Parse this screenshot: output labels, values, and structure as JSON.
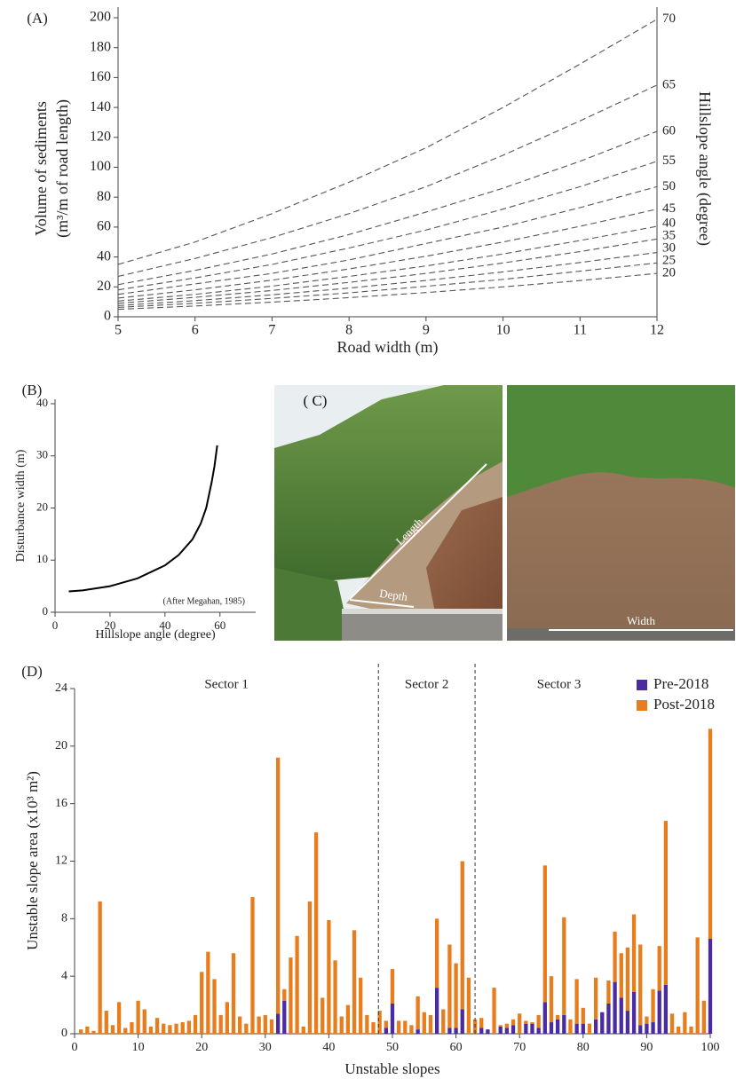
{
  "chart_data": [
    {
      "type": "line",
      "panel_label": "(A)",
      "x_label": "Road width (m)",
      "y_label": [
        "Volume of sediments",
        "(m³/m of road length)"
      ],
      "y2_label": "Hillslope angle (degree)",
      "x": [
        5,
        6,
        7,
        8,
        9,
        10,
        11,
        12
      ],
      "xlim": [
        5,
        12
      ],
      "xticks": [
        5,
        6,
        7,
        8,
        9,
        10,
        11,
        12
      ],
      "ylim": [
        0,
        200
      ],
      "yticks": [
        0,
        20,
        40,
        60,
        80,
        100,
        120,
        140,
        160,
        180,
        200
      ],
      "line_style": "dashed",
      "color": "#555555",
      "series": [
        {
          "name": "20",
          "values": [
            5,
            7.2,
            9.8,
            12.8,
            16.2,
            20,
            24.2,
            29
          ]
        },
        {
          "name": "25",
          "values": [
            6.3,
            9,
            12.3,
            16,
            20.4,
            25,
            30.5,
            36
          ]
        },
        {
          "name": "30",
          "values": [
            7.5,
            10.8,
            14.7,
            19.2,
            24.3,
            30,
            36.3,
            43
          ]
        },
        {
          "name": "35",
          "values": [
            9,
            13,
            17.6,
            23,
            29,
            36,
            43.6,
            52
          ]
        },
        {
          "name": "40",
          "values": [
            10.5,
            15,
            20.5,
            27,
            34,
            42,
            51,
            60.5
          ]
        },
        {
          "name": "45",
          "values": [
            12.5,
            18,
            24.5,
            32,
            40.5,
            50,
            60.5,
            72
          ]
        },
        {
          "name": "50",
          "values": [
            15,
            22,
            29,
            38,
            49,
            60,
            73,
            87
          ]
        },
        {
          "name": "55",
          "values": [
            18,
            26,
            35,
            46,
            58,
            72,
            87,
            104
          ]
        },
        {
          "name": "60",
          "values": [
            21.5,
            31,
            42,
            55,
            70,
            86,
            104,
            124
          ]
        },
        {
          "name": "65",
          "values": [
            27,
            39,
            53,
            69,
            87,
            108,
            131,
            155
          ]
        },
        {
          "name": "70",
          "values": [
            35,
            50,
            69,
            90,
            113,
            140,
            169,
            199
          ]
        }
      ]
    },
    {
      "type": "line",
      "panel_label": "(B)",
      "x_label": "Hillslope angle (degree)",
      "y_label": [
        "Disturbance width (m)"
      ],
      "annotation": "(After Megahan, 1985)",
      "x": [
        5,
        10,
        20,
        30,
        40,
        45,
        50,
        53,
        55,
        57,
        58,
        59
      ],
      "xlim": [
        0,
        73
      ],
      "xticks": [
        0,
        20,
        40,
        60
      ],
      "ylim": [
        0,
        40
      ],
      "yticks": [
        0,
        10,
        20,
        30,
        40
      ],
      "line_style": "solid",
      "color": "#000000",
      "series": [
        {
          "values": [
            4,
            4.2,
            5,
            6.5,
            9,
            11,
            14,
            17,
            20,
            25,
            28,
            32
          ]
        }
      ]
    },
    {
      "type": "stacked_bar",
      "panel_label": "(D)",
      "x_label": "Unstable slopes",
      "y_label": [
        "Unstable slope area (x10³ m²)"
      ],
      "legend": "upper right",
      "x": [
        1,
        2,
        3,
        4,
        5,
        6,
        7,
        8,
        9,
        10,
        11,
        12,
        13,
        14,
        15,
        16,
        17,
        18,
        19,
        20,
        21,
        22,
        23,
        24,
        25,
        26,
        27,
        28,
        29,
        30,
        31,
        32,
        33,
        34,
        35,
        36,
        37,
        38,
        39,
        40,
        41,
        42,
        43,
        44,
        45,
        46,
        47,
        48,
        49,
        50,
        51,
        52,
        53,
        54,
        55,
        56,
        57,
        58,
        59,
        60,
        61,
        62,
        63,
        64,
        65,
        66,
        67,
        68,
        69,
        70,
        71,
        72,
        73,
        74,
        75,
        76,
        77,
        78,
        79,
        80,
        81,
        82,
        83,
        84,
        85,
        86,
        87,
        88,
        89,
        90,
        91,
        92,
        93,
        94,
        95,
        96,
        97,
        98,
        99,
        100
      ],
      "xlim": [
        0,
        100
      ],
      "xticks": [
        0,
        10,
        20,
        30,
        40,
        50,
        60,
        70,
        80,
        90,
        100
      ],
      "ylim": [
        0,
        24
      ],
      "yticks": [
        0,
        4,
        8,
        12,
        16,
        20,
        24
      ],
      "sectors": [
        "Sector 1",
        "Sector 2",
        "Sector 3"
      ],
      "dividers": [
        47.8,
        63
      ],
      "series": [
        {
          "name": "Pre-2018",
          "color": "#4a2ba0",
          "values": [
            0,
            0,
            0,
            0,
            0,
            0,
            0,
            0,
            0,
            0,
            0,
            0,
            0,
            0,
            0,
            0,
            0,
            0,
            0,
            0,
            0,
            0,
            0,
            0,
            0,
            0,
            0,
            0,
            0,
            0,
            0,
            1.4,
            2.3,
            0,
            0,
            0,
            0,
            0,
            0,
            0,
            0,
            0,
            0,
            0,
            0,
            0,
            0,
            0,
            0.4,
            2.1,
            0,
            0,
            0,
            0.3,
            0,
            0,
            3.2,
            0,
            0.4,
            0.4,
            1.7,
            0,
            0,
            0.4,
            0.3,
            0,
            0.5,
            0.4,
            0.6,
            0,
            0.7,
            0.7,
            0.4,
            2.2,
            0.8,
            1.0,
            1.3,
            0,
            0.7,
            0.7,
            0,
            1.0,
            1.5,
            2.1,
            3.6,
            2.5,
            1.6,
            2.9,
            0.6,
            0.7,
            0.8,
            3.0,
            3.4,
            0,
            0,
            0,
            0,
            0,
            0,
            6.6
          ]
        },
        {
          "name": "Post-2018",
          "color": "#e87d1e",
          "values": [
            0.3,
            0.5,
            0.2,
            9.2,
            1.6,
            0.6,
            2.2,
            0.4,
            0.8,
            2.3,
            1.7,
            0.5,
            1.1,
            0.7,
            0.6,
            0.7,
            0.8,
            0.9,
            1.3,
            4.3,
            5.7,
            3.8,
            1.3,
            2.2,
            5.6,
            1.2,
            0.7,
            9.5,
            1.2,
            1.3,
            1.0,
            17.8,
            0.8,
            5.3,
            6.8,
            0.5,
            9.2,
            14.0,
            2.5,
            7.9,
            5.1,
            1.2,
            2.0,
            7.2,
            3.9,
            1.3,
            0.8,
            1.6,
            0.5,
            2.4,
            0.9,
            0.9,
            0.6,
            2.3,
            1.5,
            1.3,
            4.8,
            1.7,
            5.8,
            4.5,
            10.3,
            3.9,
            1.0,
            0.7,
            0,
            3.2,
            0.1,
            0.3,
            0.4,
            1.4,
            0.2,
            0.1,
            0.9,
            9.5,
            3.2,
            0.3,
            6.8,
            1.0,
            3.1,
            1.1,
            0.7,
            2.9,
            0,
            1.6,
            3.5,
            3.1,
            4.4,
            5.4,
            5.6,
            0.5,
            2.3,
            3.1,
            11.4,
            1.4,
            0.5,
            1.5,
            0.5,
            6.7,
            2.3,
            14.6
          ]
        }
      ]
    }
  ],
  "photo": {
    "label": "( C)",
    "annotations": [
      "Length",
      "Depth",
      "Width"
    ]
  }
}
